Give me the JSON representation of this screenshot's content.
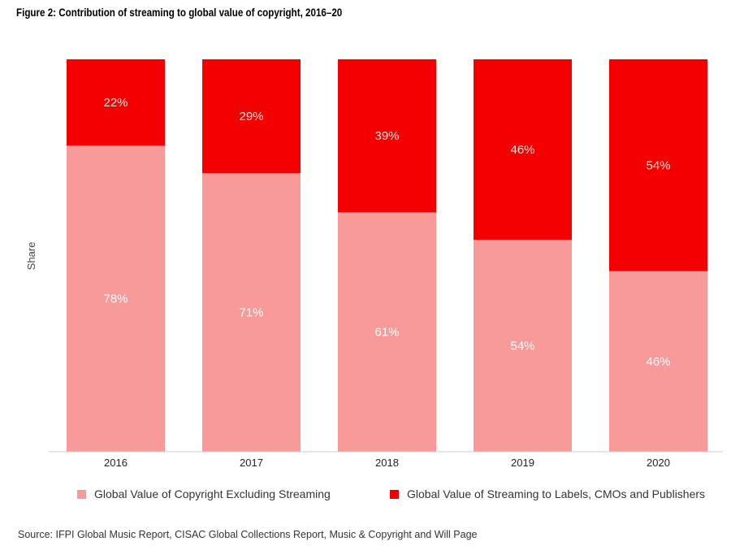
{
  "title": "Figure 2: Contribution of streaming to global value of copyright, 2016–20",
  "chart_data": {
    "type": "bar",
    "stacked": true,
    "categories": [
      "2016",
      "2017",
      "2018",
      "2019",
      "2020"
    ],
    "series": [
      {
        "name": "Global Value of Copyright Excluding Streaming",
        "values": [
          78,
          71,
          61,
          54,
          46
        ],
        "labels": [
          "78%",
          "71%",
          "61%",
          "54%",
          "46%"
        ],
        "color": "#f99a9a"
      },
      {
        "name": "Global Value of Streaming to Labels, CMOs and Publishers",
        "values": [
          22,
          29,
          39,
          46,
          54
        ],
        "labels": [
          "22%",
          "29%",
          "39%",
          "46%",
          "54%"
        ],
        "color": "#f50000"
      }
    ],
    "ylabel": "Share",
    "ylim": [
      0,
      100
    ],
    "legend_position": "bottom",
    "grid": false
  },
  "source": "Source: IFPI Global Music Report, CISAC Global Collections Report, Music & Copyright and Will Page"
}
